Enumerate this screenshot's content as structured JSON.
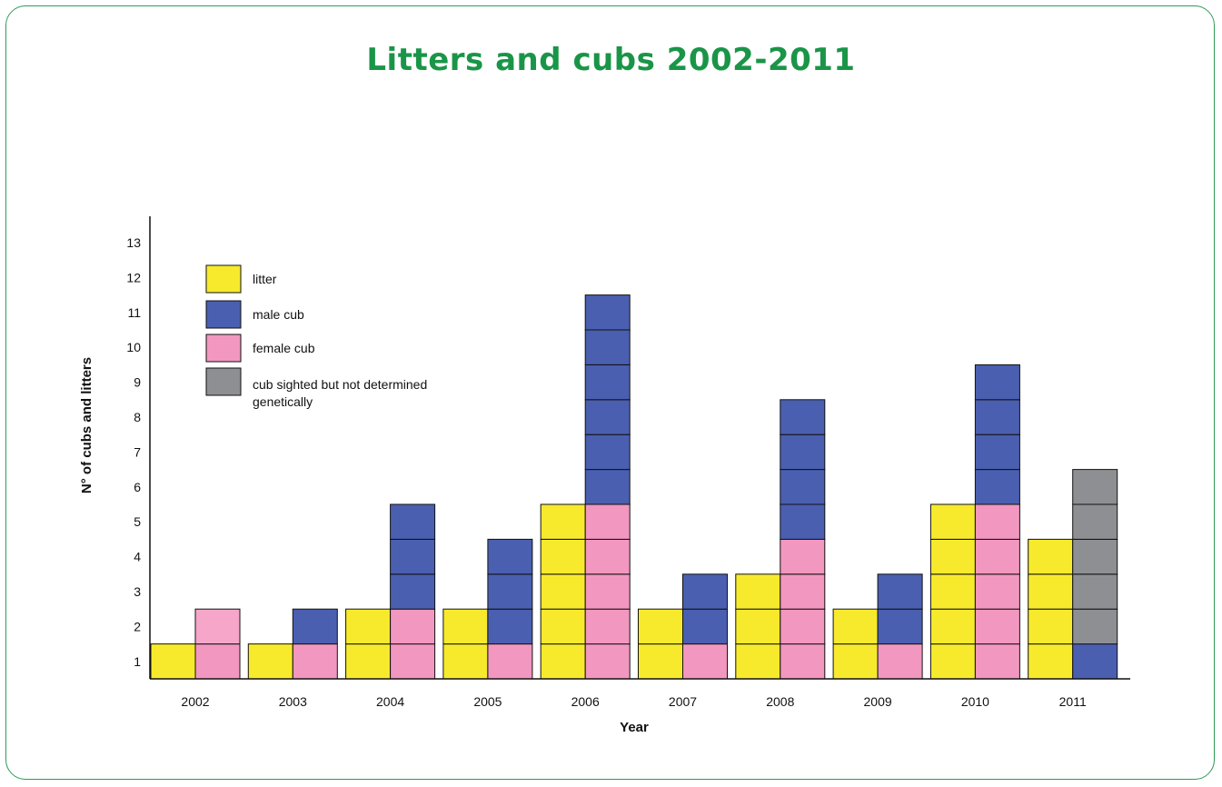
{
  "colors": {
    "litter": "#f7ea2c",
    "male": "#4a5fb0",
    "female": "#f297bf",
    "female_light": "#f5a6c9",
    "undetermined": "#8e8f93",
    "frame": "#2e9b57",
    "title": "#1a9548"
  },
  "chart_data": {
    "type": "bar",
    "title": "Litters and cubs 2002-2011",
    "xlabel": "Year",
    "ylabel": "N° of cubs and litters",
    "categories": [
      "2002",
      "2003",
      "2004",
      "2005",
      "2006",
      "2007",
      "2008",
      "2009",
      "2010",
      "2011"
    ],
    "y_ticks": [
      "1",
      "2",
      "3",
      "4",
      "5",
      "6",
      "7",
      "8",
      "9",
      "10",
      "11",
      "12",
      "13"
    ],
    "ylim": [
      0,
      14
    ],
    "legend_position": "top-left",
    "litters": [
      1,
      1,
      2,
      2,
      5,
      2,
      3,
      2,
      5,
      4
    ],
    "series": [
      {
        "key": "male",
        "name": "male cub",
        "values": [
          0,
          1,
          3,
          3,
          6,
          2,
          4,
          2,
          4,
          1
        ]
      },
      {
        "key": "female",
        "name": "female cub",
        "values": [
          2,
          1,
          2,
          1,
          5,
          1,
          4,
          1,
          5,
          0
        ]
      },
      {
        "key": "undetermined",
        "name": "cub sighted but not determined genetically",
        "values": [
          0,
          0,
          0,
          0,
          0,
          0,
          0,
          0,
          0,
          5
        ]
      }
    ],
    "legend": [
      {
        "key": "litter",
        "label": "litter"
      },
      {
        "key": "male",
        "label": "male cub"
      },
      {
        "key": "female",
        "label": "female cub"
      },
      {
        "key": "undetermined",
        "label": "cub sighted but not determined genetically"
      }
    ]
  }
}
